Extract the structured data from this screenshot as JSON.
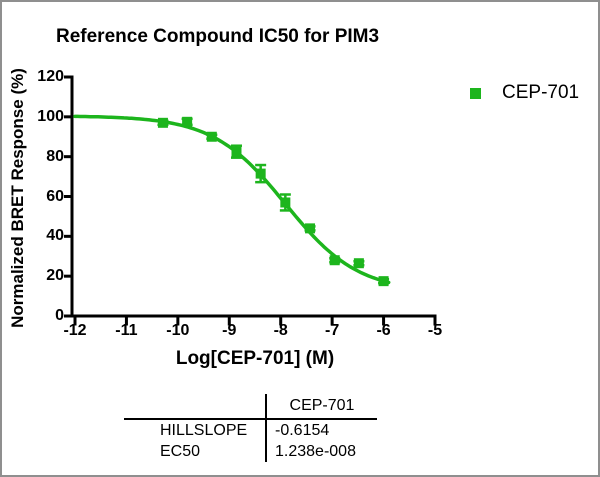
{
  "window": {
    "background": "#ffffff",
    "border_color": "#8f8f8f"
  },
  "chart_data": {
    "type": "scatter",
    "title": "Reference Compound IC50 for PIM3",
    "xlabel": "Log[CEP-701] (M)",
    "ylabel": "Normalized BRET Response (%)",
    "xlim": [
      -12,
      -5
    ],
    "ylim": [
      0,
      120
    ],
    "x_ticks": [
      "-12",
      "-11",
      "-10",
      "-9",
      "-8",
      "-7",
      "-6",
      "-5"
    ],
    "y_ticks": [
      "0",
      "20",
      "40",
      "60",
      "80",
      "100",
      "120"
    ],
    "grid": false,
    "axis_color": "#000000",
    "legend": {
      "position": "top-right",
      "label": "CEP-701",
      "marker": "square",
      "color": "#1db51d"
    },
    "series": [
      {
        "name": "CEP-701",
        "color": "#1db51d",
        "marker": "square",
        "points": [
          {
            "x": -10.29,
            "y": 97.0,
            "err": 1.0
          },
          {
            "x": -9.82,
            "y": 97.5,
            "err": 1.5
          },
          {
            "x": -9.34,
            "y": 90.0,
            "err": 1.0
          },
          {
            "x": -8.86,
            "y": 82.5,
            "err": 3.0
          },
          {
            "x": -8.39,
            "y": 71.5,
            "err": 4.3
          },
          {
            "x": -7.91,
            "y": 57.0,
            "err": 4.0
          },
          {
            "x": -7.43,
            "y": 44.0,
            "err": 1.0
          },
          {
            "x": -6.95,
            "y": 28.0,
            "err": 1.0
          },
          {
            "x": -6.48,
            "y": 26.5,
            "err": 1.0
          },
          {
            "x": -6.0,
            "y": 17.5,
            "err": 1.0
          }
        ],
        "fit_curve": {
          "top": 100.5,
          "bottom": 12,
          "logEC50": -7.907,
          "hillslope": -0.6154,
          "x_start": -12,
          "x_end": -5.86
        }
      }
    ]
  },
  "results_table": {
    "column_header": "CEP-701",
    "rows": [
      {
        "param": "HILLSLOPE",
        "value": "-0.6154"
      },
      {
        "param": "EC50",
        "value": "1.238e-008"
      }
    ]
  }
}
